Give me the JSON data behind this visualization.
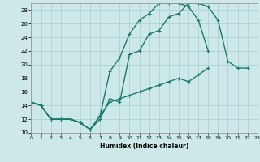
{
  "xlabel": "Humidex (Indice chaleur)",
  "background_color": "#cce8e8",
  "line_color": "#1a7a6e",
  "xlim": [
    0,
    23
  ],
  "ylim": [
    10,
    29
  ],
  "xticks": [
    0,
    1,
    2,
    3,
    4,
    5,
    6,
    7,
    8,
    9,
    10,
    11,
    12,
    13,
    14,
    15,
    16,
    17,
    18,
    19,
    20,
    21,
    22,
    23
  ],
  "yticks": [
    10,
    12,
    14,
    16,
    18,
    20,
    22,
    24,
    26,
    28
  ],
  "curve1_x": [
    0,
    1,
    2,
    3,
    4,
    5,
    6,
    7,
    8,
    9,
    10,
    11,
    12,
    13,
    14,
    15,
    16,
    17,
    18,
    19,
    20,
    21,
    22
  ],
  "curve1_y": [
    14.5,
    14.0,
    12.0,
    12.0,
    12.0,
    11.5,
    10.5,
    12.0,
    15.0,
    14.5,
    21.5,
    22.0,
    24.5,
    25.0,
    27.0,
    27.5,
    29.0,
    29.0,
    28.5,
    26.5,
    20.5,
    19.5,
    19.5
  ],
  "curve2_x": [
    0,
    1,
    2,
    3,
    4,
    5,
    6,
    7,
    8,
    9,
    10,
    11,
    12,
    13,
    14,
    15,
    16,
    17,
    18,
    19,
    20,
    21,
    22
  ],
  "curve2_y": [
    14.5,
    14.0,
    12.0,
    12.0,
    12.0,
    11.5,
    10.5,
    12.5,
    19.0,
    21.0,
    24.5,
    26.5,
    27.5,
    29.0,
    29.0,
    29.0,
    28.5,
    26.5,
    22.0,
    null,
    null,
    null,
    null
  ],
  "curve3_x": [
    0,
    1,
    2,
    3,
    4,
    5,
    6,
    7,
    8,
    9,
    10,
    11,
    12,
    13,
    14,
    15,
    16,
    17,
    18,
    19,
    20,
    21,
    22
  ],
  "curve3_y": [
    14.5,
    14.0,
    12.0,
    12.0,
    12.0,
    11.5,
    10.5,
    12.5,
    14.5,
    15.0,
    15.5,
    16.0,
    16.5,
    17.0,
    17.5,
    18.0,
    17.5,
    18.5,
    19.5,
    null,
    null,
    null,
    null
  ]
}
